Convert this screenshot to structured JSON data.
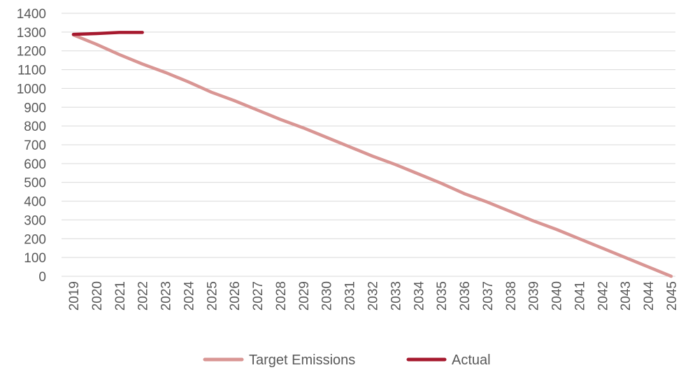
{
  "chart_data": {
    "type": "line",
    "title": "",
    "xlabel": "",
    "ylabel": "",
    "x": [
      "2019",
      "2020",
      "2021",
      "2022",
      "2023",
      "2024",
      "2025",
      "2026",
      "2027",
      "2028",
      "2029",
      "2030",
      "2031",
      "2032",
      "2033",
      "2034",
      "2035",
      "2036",
      "2037",
      "2038",
      "2039",
      "2040",
      "2041",
      "2042",
      "2043",
      "2044",
      "2045"
    ],
    "yticks": [
      0,
      100,
      200,
      300,
      400,
      500,
      600,
      700,
      800,
      900,
      1000,
      1100,
      1200,
      1300,
      1400
    ],
    "ylim": [
      0,
      1400
    ],
    "grid": true,
    "legend_position": "bottom",
    "series": [
      {
        "name": "Target Emissions",
        "color": "#d99694",
        "values": [
          1285,
          1235,
          1180,
          1130,
          1085,
          1035,
          980,
          935,
          885,
          835,
          790,
          740,
          690,
          640,
          595,
          545,
          495,
          440,
          395,
          345,
          295,
          250,
          200,
          150,
          100,
          50,
          0
        ]
      },
      {
        "name": "Actual",
        "color": "#a6192e",
        "values": [
          1288,
          1292,
          1298,
          1298,
          null,
          null,
          null,
          null,
          null,
          null,
          null,
          null,
          null,
          null,
          null,
          null,
          null,
          null,
          null,
          null,
          null,
          null,
          null,
          null,
          null,
          null,
          null
        ]
      }
    ]
  }
}
